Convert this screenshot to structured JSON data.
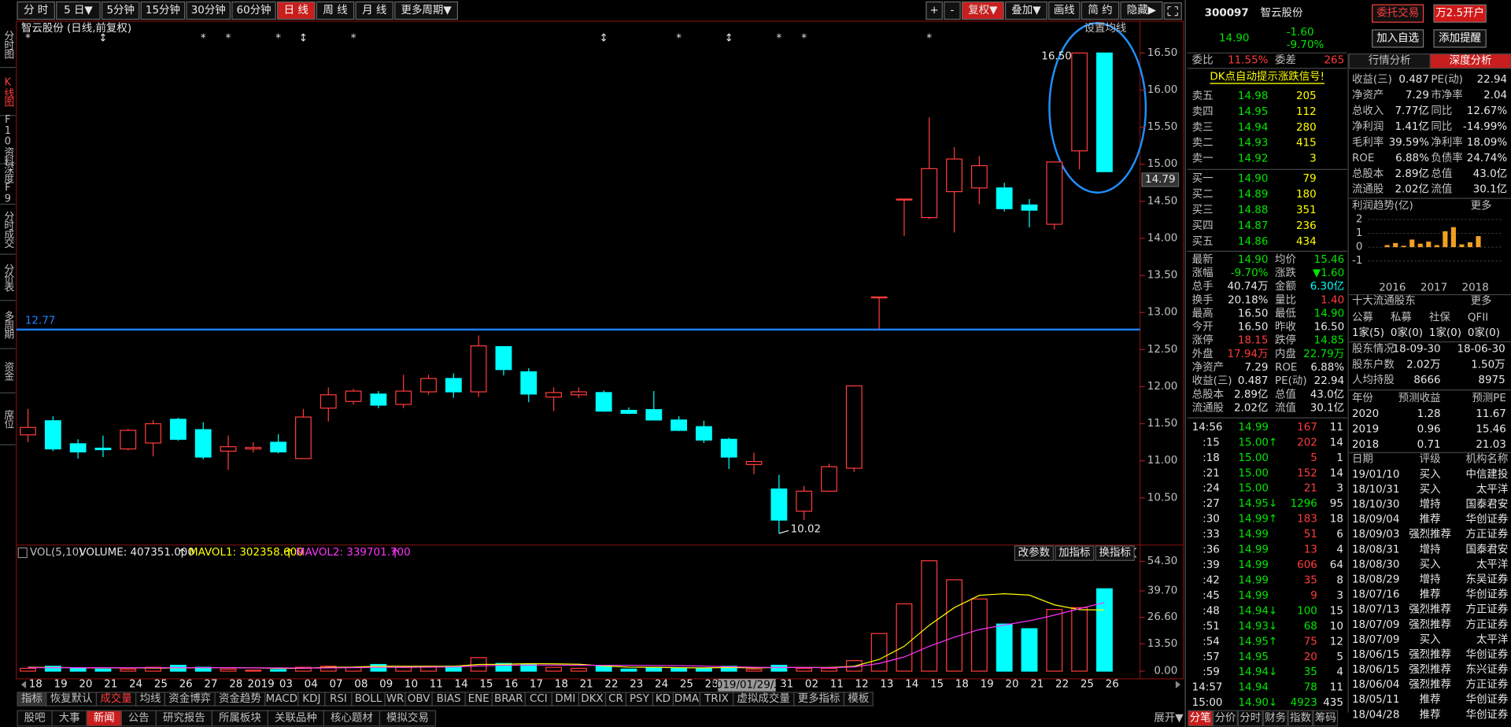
{
  "toolbar": {
    "periods": [
      "分 时",
      "5 日▼",
      "5分钟",
      "15分钟",
      "30分钟",
      "60分钟",
      "日 线",
      "周 线",
      "月 线",
      "更多周期▼"
    ],
    "active_period": 6,
    "tools": [
      "+",
      "-",
      "复权▼",
      "叠加▼",
      "画线",
      "简 约",
      "隐藏▶"
    ],
    "active_tool": 2
  },
  "sidebar": {
    "items": [
      "分时图",
      "K线图",
      "F10资料",
      "深度F9",
      "分时成交",
      "分价表",
      "多周期",
      "资金",
      "席位"
    ],
    "active": 1
  },
  "kline": {
    "title": "智云股份 (日线,前复权)",
    "setting": "设置均线",
    "dates": [
      "18",
      "19",
      "20",
      "21",
      "24",
      "25",
      "26",
      "27",
      "28",
      "2019",
      "03",
      "04",
      "07",
      "08",
      "09",
      "10",
      "11",
      "14",
      "15",
      "16",
      "17",
      "18",
      "21",
      "22",
      "23",
      "24",
      "25",
      "28",
      null,
      null,
      "31",
      "02",
      "11",
      "12",
      "13",
      "14",
      "15",
      "18",
      "19",
      "20",
      "21",
      "22",
      "25",
      "26"
    ],
    "cursor_date": "2019/01/29/二",
    "open": [
      11.35,
      11.54,
      11.23,
      11.17,
      11.16,
      11.24,
      11.56,
      11.42,
      11.13,
      11.16,
      11.25,
      11.03,
      11.71,
      11.8,
      11.9,
      11.76,
      11.93,
      12.11,
      11.93,
      12.54,
      12.2,
      11.86,
      11.89,
      11.92,
      11.68,
      11.69,
      11.55,
      11.46,
      11.29,
      10.95,
      10.62,
      10.32,
      10.59,
      10.9,
      13.21,
      14.53,
      14.28,
      14.63,
      14.68,
      14.68,
      14.45,
      14.19,
      15.18,
      16.5
    ],
    "close": [
      11.45,
      11.16,
      11.12,
      11.15,
      11.41,
      11.5,
      11.29,
      11.05,
      11.19,
      11.18,
      11.12,
      11.59,
      11.89,
      11.94,
      11.75,
      11.94,
      12.11,
      11.93,
      12.55,
      12.23,
      11.9,
      11.92,
      11.93,
      11.67,
      11.64,
      11.55,
      11.41,
      11.28,
      11.05,
      10.99,
      10.2,
      10.59,
      10.92,
      12.01,
      13.21,
      14.53,
      14.94,
      15.07,
      14.98,
      14.4,
      14.38,
      15.03,
      16.5,
      14.9
    ],
    "high": [
      11.7,
      11.6,
      11.29,
      11.34,
      11.43,
      11.55,
      11.58,
      11.52,
      11.34,
      11.25,
      11.36,
      11.7,
      11.99,
      11.97,
      11.94,
      12.16,
      12.16,
      12.18,
      12.69,
      12.54,
      12.25,
      11.99,
      11.99,
      11.95,
      11.72,
      11.94,
      11.6,
      11.54,
      11.31,
      11.11,
      10.81,
      10.66,
      10.96,
      12.01,
      13.21,
      14.53,
      15.63,
      15.23,
      15.11,
      14.75,
      14.53,
      15.03,
      16.5,
      16.5
    ],
    "low": [
      11.25,
      11.13,
      11.03,
      11.05,
      11.14,
      11.06,
      11.27,
      11.02,
      10.88,
      11.11,
      11.1,
      11.03,
      11.53,
      11.76,
      11.71,
      11.71,
      11.89,
      11.85,
      11.86,
      12.15,
      11.79,
      11.67,
      11.85,
      11.66,
      11.63,
      11.55,
      11.4,
      11.24,
      10.89,
      10.82,
      10.02,
      10.2,
      10.58,
      10.85,
      12.78,
      14.03,
      14.26,
      14.08,
      14.46,
      14.36,
      14.15,
      14.12,
      14.93,
      14.9
    ],
    "ylim": [
      9.877,
      16.929
    ],
    "yticks": [
      {
        "value": 16.5,
        "label": "16.50"
      },
      {
        "value": 16,
        "label": "16.00"
      },
      {
        "value": 15.5,
        "label": "15.50"
      },
      {
        "value": 15,
        "label": "15.00"
      },
      {
        "value": 14.5,
        "label": "14.50"
      },
      {
        "value": 14,
        "label": "14.00"
      },
      {
        "value": 13.5,
        "label": "13.50"
      },
      {
        "value": 13,
        "label": "13.00"
      },
      {
        "value": 12.5,
        "label": "12.50"
      },
      {
        "value": 12,
        "label": "12.00"
      },
      {
        "value": 11.5,
        "label": "11.50"
      },
      {
        "value": 11,
        "label": "11.00"
      },
      {
        "value": 10.5,
        "label": "10.50"
      }
    ],
    "price_marker": 14.79,
    "hline": 12.77,
    "high_label": {
      "index": 42,
      "value": 16.5,
      "label": "16.50"
    },
    "low_label": {
      "index": 30,
      "value": 10.02
    },
    "markers": [
      {
        "index": 0,
        "symbol": "*"
      },
      {
        "index": 3,
        "symbol": "↕"
      },
      {
        "index": 7,
        "symbol": "*"
      },
      {
        "index": 8,
        "symbol": "*"
      },
      {
        "index": 10,
        "symbol": "*"
      },
      {
        "index": 11,
        "symbol": "↕"
      },
      {
        "index": 13,
        "symbol": "*"
      },
      {
        "index": 23,
        "symbol": "↕"
      },
      {
        "index": 26,
        "symbol": "*"
      },
      {
        "index": 28,
        "symbol": "↕"
      },
      {
        "index": 30,
        "symbol": "*"
      },
      {
        "index": 31,
        "symbol": "*"
      },
      {
        "index": 36,
        "symbol": "*"
      }
    ],
    "up_color": "#ff3c3c",
    "down_color": "#00ffff",
    "hline_color": "#1e7fff"
  },
  "volume": {
    "name": "VOL(5,10)",
    "volume_label": "VOLUME: 407351.000",
    "mavol1_label": "MAVOL1: 302358.600",
    "mavol2_label": "MAVOL2: 339701.700",
    "mavol1_color": "#ffff00",
    "mavol2_color": "#ff33ff",
    "buttons": [
      "改参数",
      "加指标",
      "换指标"
    ],
    "values": [
      1.4,
      2.4,
      1.4,
      1.0,
      1.0,
      1.9,
      2.9,
      1.9,
      1.0,
      0.5,
      0.8,
      1.9,
      2.4,
      1.9,
      3.3,
      1.9,
      2.4,
      2.4,
      6.7,
      3.8,
      3.3,
      1.9,
      1.4,
      2.4,
      1.0,
      1.9,
      1.4,
      1.4,
      2.4,
      1.0,
      2.9,
      1.4,
      1.4,
      5.2,
      18.6,
      33.3,
      54.6,
      45.2,
      35.7,
      23.3,
      21.0,
      30.5,
      31.4,
      40.74
    ],
    "mavol1": [
      1.9,
      1.8,
      1.7,
      1.6,
      1.7,
      1.5,
      1.6,
      1.7,
      1.7,
      1.6,
      1.4,
      1.4,
      1.9,
      2.0,
      2.5,
      2.4,
      2.4,
      2.4,
      3.3,
      3.4,
      3.7,
      3.6,
      3.4,
      2.6,
      2.0,
      1.9,
      1.7,
      1.6,
      1.8,
      1.6,
      1.8,
      1.8,
      1.8,
      2.4,
      5.8,
      12.3,
      22.7,
      31.4,
      37.5,
      38.3,
      37.6,
      32.8,
      30.4,
      30.24
    ],
    "mavol2": [
      1.7,
      1.7,
      1.7,
      1.7,
      1.7,
      1.7,
      1.7,
      1.7,
      1.7,
      1.6,
      1.6,
      1.5,
      1.6,
      1.7,
      1.9,
      1.9,
      2.0,
      2.1,
      2.6,
      2.9,
      3.0,
      3.0,
      2.9,
      2.9,
      2.9,
      2.8,
      2.7,
      2.5,
      2.2,
      1.9,
      1.8,
      1.8,
      1.7,
      2.1,
      3.8,
      7.0,
      12.3,
      16.8,
      20.6,
      22.8,
      24.9,
      27.7,
      30.9,
      33.97
    ],
    "ylim": [
      0,
      54.3
    ],
    "yticks": [
      {
        "value": 54.3,
        "label": "54.30"
      },
      {
        "value": 39.7,
        "label": "39.70"
      },
      {
        "value": 26.6,
        "label": "26.60"
      },
      {
        "value": 13.5,
        "label": "13.50"
      },
      {
        "value": 0,
        "label": "0.00"
      }
    ]
  },
  "indicator_tabs": {
    "items": [
      "指标",
      "恢复默认",
      "成交量",
      "均线",
      "资金博弈",
      "资金趋势",
      "MACD",
      "KDJ",
      "RSI",
      "BOLL",
      "WR",
      "OBV",
      "BIAS",
      "ENE",
      "BRAR",
      "CCI",
      "DMI",
      "DKX",
      "CR",
      "PSY",
      "KD",
      "DMA",
      "TRIX",
      "虚拟成交量",
      "更多指标",
      "模板"
    ],
    "active": 2
  },
  "info_tabs": {
    "items": [
      "股吧",
      "大事",
      "新闻",
      "公告",
      "研究报告",
      "所属板块",
      "关联品种",
      "核心题材",
      "模拟交易"
    ],
    "active": 2,
    "expand": "展开▼"
  },
  "quote": {
    "code": "300097",
    "name": "智云股份",
    "buttons": [
      "委托交易",
      "万2.5开户",
      "加入自选",
      "添加提醒"
    ],
    "price": "14.90",
    "change": "-1.60",
    "change_pct": "-9.70%",
    "weibi_label": "委比",
    "weibi": "11.55%",
    "weicha_label": "委差",
    "weicha": "265",
    "dk_link": "DK点自动提示涨跌信号!"
  },
  "orderbook": {
    "sell": [
      [
        "卖五",
        "14.98",
        "205"
      ],
      [
        "卖四",
        "14.95",
        "112"
      ],
      [
        "卖三",
        "14.94",
        "280"
      ],
      [
        "卖二",
        "14.93",
        "415"
      ],
      [
        "卖一",
        "14.92",
        "3"
      ]
    ],
    "buy": [
      [
        "买一",
        "14.90",
        "79"
      ],
      [
        "买二",
        "14.89",
        "180"
      ],
      [
        "买三",
        "14.88",
        "351"
      ],
      [
        "买四",
        "14.87",
        "236"
      ],
      [
        "买五",
        "14.86",
        "434"
      ]
    ]
  },
  "stats": {
    "rows": [
      [
        "最新",
        "14.90",
        "均价",
        "15.46"
      ],
      [
        "涨幅",
        "-9.70%",
        "涨跌",
        "▼1.60"
      ],
      [
        "总手",
        "40.74万",
        "金额",
        "6.30亿"
      ],
      [
        "换手",
        "20.18%",
        "量比",
        "1.40"
      ],
      [
        "最高",
        "16.50",
        "最低",
        "14.90"
      ],
      [
        "今开",
        "16.50",
        "昨收",
        "16.50"
      ],
      [
        "涨停",
        "18.15",
        "跌停",
        "14.85"
      ],
      [
        "外盘",
        "17.94万",
        "内盘",
        "22.79万"
      ],
      [
        "净资产",
        "7.29",
        "ROE",
        "6.88%"
      ],
      [
        "收益(三)",
        "0.487",
        "PE(动)",
        "22.94"
      ],
      [
        "总股本",
        "2.89亿",
        "总值",
        "43.0亿"
      ],
      [
        "流通股",
        "2.02亿",
        "流值",
        "30.1亿"
      ]
    ],
    "colors": [
      [
        "#00e600",
        "#00e600"
      ],
      [
        "#00e600",
        "#00e600"
      ],
      [
        "#e8e8e8",
        "#00ffff"
      ],
      [
        "#e8e8e8",
        "#ff3c3c"
      ],
      [
        "#e8e8e8",
        "#00e600"
      ],
      [
        "#e8e8e8",
        "#e8e8e8"
      ],
      [
        "#ff3c3c",
        "#00e600"
      ],
      [
        "#ff3c3c",
        "#00e600"
      ],
      [
        "#e8e8e8",
        "#e8e8e8"
      ],
      [
        "#e8e8e8",
        "#e8e8e8"
      ],
      [
        "#e8e8e8",
        "#e8e8e8"
      ],
      [
        "#e8e8e8",
        "#e8e8e8"
      ]
    ]
  },
  "ticks": {
    "rows": [
      [
        "14:56",
        "14.99",
        "167",
        "11"
      ],
      [
        ":15",
        "15.00↑",
        "202",
        "14"
      ],
      [
        ":18",
        "15.00",
        "5",
        "1"
      ],
      [
        ":21",
        "15.00",
        "152",
        "14"
      ],
      [
        ":24",
        "15.00",
        "21",
        "3"
      ],
      [
        ":27",
        "14.95↓",
        "1296",
        "95"
      ],
      [
        ":30",
        "14.99↑",
        "183",
        "18"
      ],
      [
        ":33",
        "14.99",
        "51",
        "6"
      ],
      [
        ":36",
        "14.99",
        "13",
        "4"
      ],
      [
        ":39",
        "14.99",
        "606",
        "64"
      ],
      [
        ":42",
        "14.99",
        "35",
        "8"
      ],
      [
        ":45",
        "14.99",
        "9",
        "3"
      ],
      [
        ":48",
        "14.94↓",
        "100",
        "15"
      ],
      [
        ":51",
        "14.93↓",
        "68",
        "10"
      ],
      [
        ":54",
        "14.95↑",
        "75",
        "12"
      ],
      [
        ":57",
        "14.95",
        "20",
        "5"
      ],
      [
        ":59",
        "14.94↓",
        "35",
        "4"
      ],
      [
        "14:57",
        "14.94",
        "78",
        "11"
      ],
      [
        "15:00",
        "14.90↓",
        "4923",
        "435"
      ]
    ],
    "volume_colors": [
      "#ff3c3c",
      "#ff3c3c",
      "#ff3c3c",
      "#ff3c3c",
      "#ff3c3c",
      "#00e600",
      "#ff3c3c",
      "#ff3c3c",
      "#ff3c3c",
      "#ff3c3c",
      "#ff3c3c",
      "#ff3c3c",
      "#00e600",
      "#00e600",
      "#ff3c3c",
      "#ff3c3c",
      "#00e600",
      "#00e600",
      "#00e600"
    ]
  },
  "bottom_right_tabs": {
    "items": [
      "分笔",
      "分价",
      "分时",
      "财务",
      "指数",
      "筹码"
    ],
    "active": 0
  },
  "analysis": {
    "tabs": [
      "行情分析",
      "深度分析"
    ],
    "active_tab": 1,
    "rows": [
      [
        "收益(三)",
        "0.487",
        "PE(动)",
        "22.94"
      ],
      [
        "净资产",
        "7.29",
        "市净率",
        "2.04"
      ],
      [
        "总收入",
        "7.77亿",
        "同比",
        "12.67%"
      ],
      [
        "净利润",
        "1.41亿",
        "同比",
        "-14.99%"
      ],
      [
        "毛利率",
        "39.59%",
        "净利率",
        "18.09%"
      ],
      [
        "ROE",
        "6.88%",
        "负债率",
        "24.74%"
      ],
      [
        "总股本",
        "2.89亿",
        "总值",
        "43.0亿"
      ],
      [
        "流通股",
        "2.02亿",
        "流值",
        "30.1亿"
      ]
    ],
    "profit": {
      "title": "利润趋势(亿)",
      "more": "更多",
      "ylim": [
        -1,
        2
      ],
      "yticks": [
        2,
        1,
        0,
        -1
      ],
      "years": [
        "2016",
        "2017",
        "2018"
      ],
      "values": [
        0.15,
        0.3,
        0.1,
        0.55,
        0.25,
        0.4,
        0.15,
        1.15,
        1.45,
        0.2,
        0.35,
        0.8
      ],
      "color": "#f0a020"
    },
    "holders": {
      "title": "十大流通股东",
      "more": "更多",
      "rows": [
        [
          "公募",
          "私募",
          "社保",
          "QFII"
        ],
        [
          "1家(5)",
          "0家(0)",
          "1家(0)",
          "0家(0)"
        ]
      ]
    },
    "holder_info": [
      [
        "股东情况",
        "18-09-30",
        "18-06-30"
      ],
      [
        "股东户数",
        "2.02万",
        "1.50万"
      ],
      [
        "人均持股",
        "8666",
        "8975"
      ]
    ],
    "forecast": {
      "header": [
        "年份",
        "预测收益",
        "预测PE"
      ],
      "rows": [
        [
          "2020",
          "1.28",
          "11.67"
        ],
        [
          "2019",
          "0.96",
          "15.46"
        ],
        [
          "2018",
          "0.71",
          "21.03"
        ]
      ]
    },
    "ratings": {
      "header": [
        "日期",
        "评级",
        "机构名称"
      ],
      "rows": [
        [
          "19/01/10",
          "买入",
          "中信建投"
        ],
        [
          "18/10/31",
          "买入",
          "太平洋"
        ],
        [
          "18/10/30",
          "增持",
          "国泰君安"
        ],
        [
          "18/09/04",
          "推荐",
          "华创证券"
        ],
        [
          "18/09/03",
          "强烈推荐",
          "方正证券"
        ],
        [
          "18/08/31",
          "增持",
          "国泰君安"
        ],
        [
          "18/08/30",
          "买入",
          "太平洋"
        ],
        [
          "18/08/29",
          "增持",
          "东吴证券"
        ],
        [
          "18/07/16",
          "推荐",
          "华创证券"
        ],
        [
          "18/07/13",
          "强烈推荐",
          "方正证券"
        ],
        [
          "18/07/09",
          "强烈推荐",
          "方正证券"
        ],
        [
          "18/07/09",
          "买入",
          "太平洋"
        ],
        [
          "18/06/15",
          "强烈推荐",
          "华创证券"
        ],
        [
          "18/06/15",
          "强烈推荐",
          "东兴证券"
        ],
        [
          "18/06/04",
          "强烈推荐",
          "方正证券"
        ],
        [
          "18/05/11",
          "推荐",
          "华创证券"
        ],
        [
          "18/04/28",
          "推荐",
          "华创证券"
        ]
      ]
    }
  }
}
